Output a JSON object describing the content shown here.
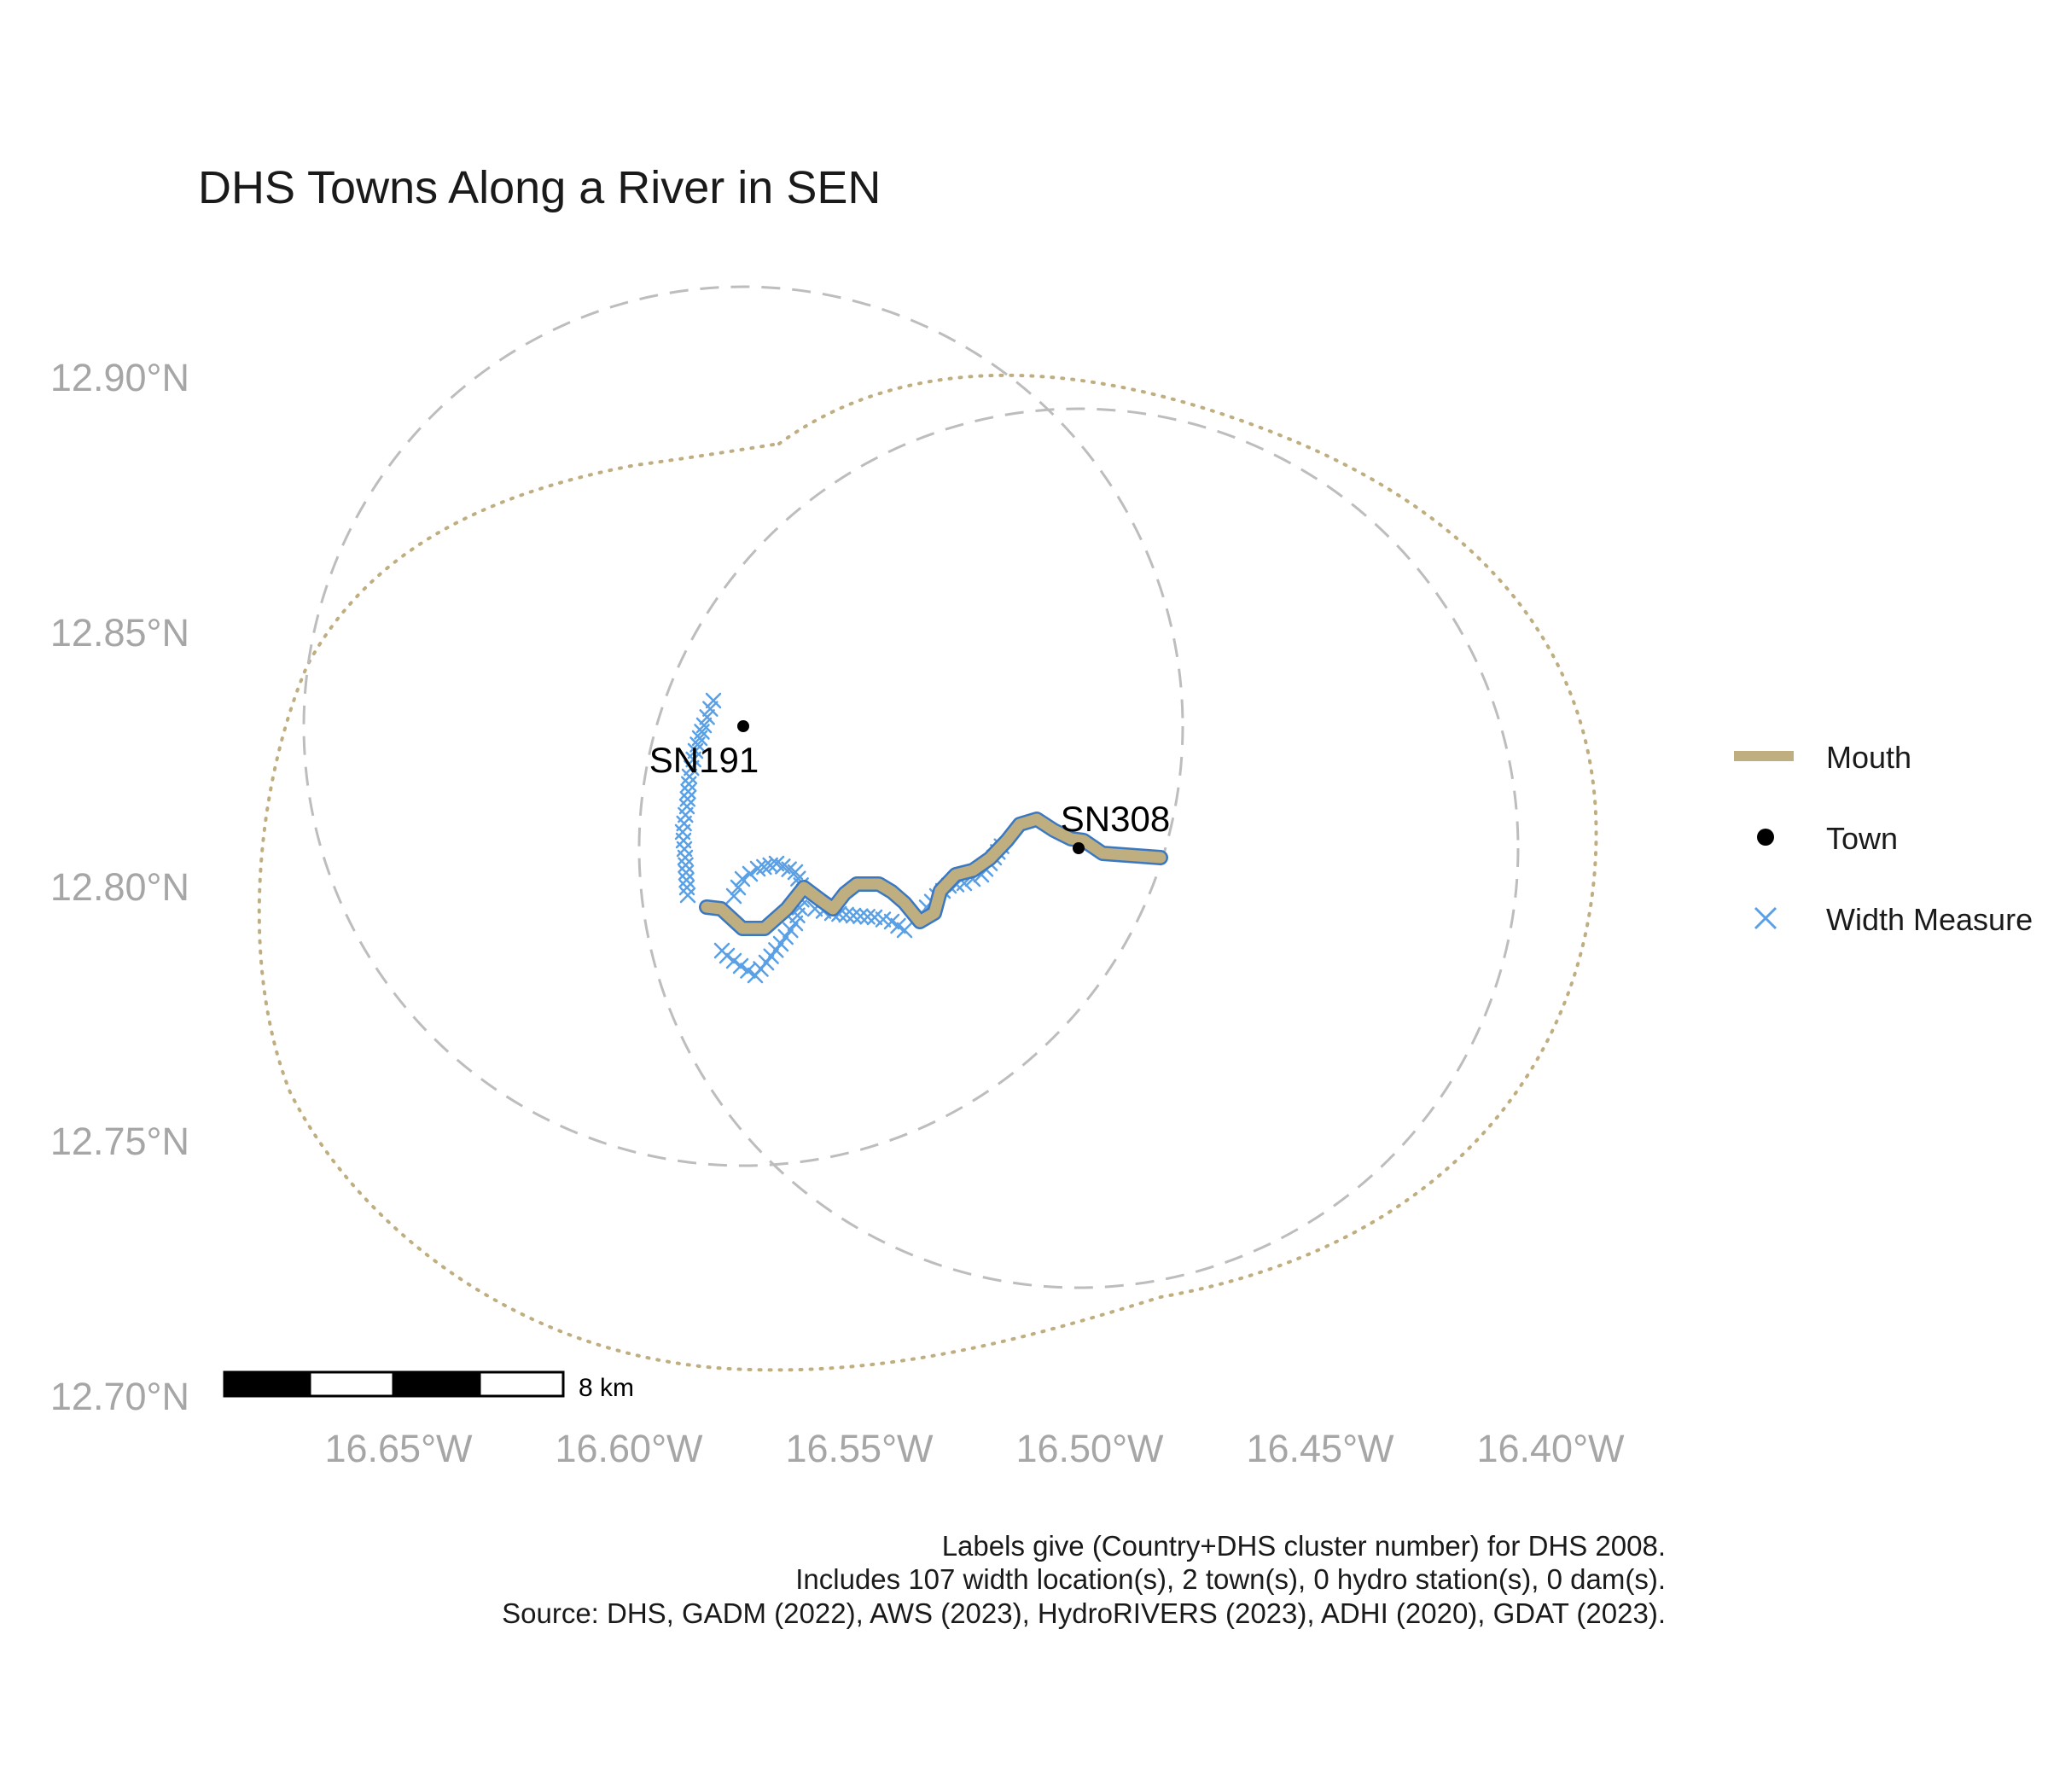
{
  "title": "DHS Towns Along a River in SEN",
  "lat_ticks": [
    "12.90°N",
    "12.85°N",
    "12.80°N",
    "12.75°N",
    "12.70°N"
  ],
  "lon_ticks": [
    "16.65°W",
    "16.60°W",
    "16.55°W",
    "16.50°W",
    "16.45°W",
    "16.40°W"
  ],
  "towns": [
    {
      "label": "SN191",
      "lon": -16.576,
      "lat": 12.831
    },
    {
      "label": "SN308",
      "lon": -16.503,
      "lat": 12.808
    }
  ],
  "legend": {
    "mouth": "Mouth",
    "town": "Town",
    "width_measure": "Width Measure"
  },
  "scalebar": {
    "label": "8 km"
  },
  "caption": {
    "line1": "Labels give (Country+DHS cluster number) for DHS 2008.",
    "line2": "Includes 107 width location(s), 2 town(s), 0 hydro station(s), 0 dam(s).",
    "line3": "Source: DHS, GADM (2022), AWS (2023), HydroRIVERS (2023), ADHI (2020), GDAT (2023)."
  },
  "colors": {
    "mouth": "#bfae7f",
    "river_outline": "#3a78c2",
    "width_measure": "#5aa0e6",
    "buffer": "#bdbdbd",
    "town": "#000000"
  }
}
